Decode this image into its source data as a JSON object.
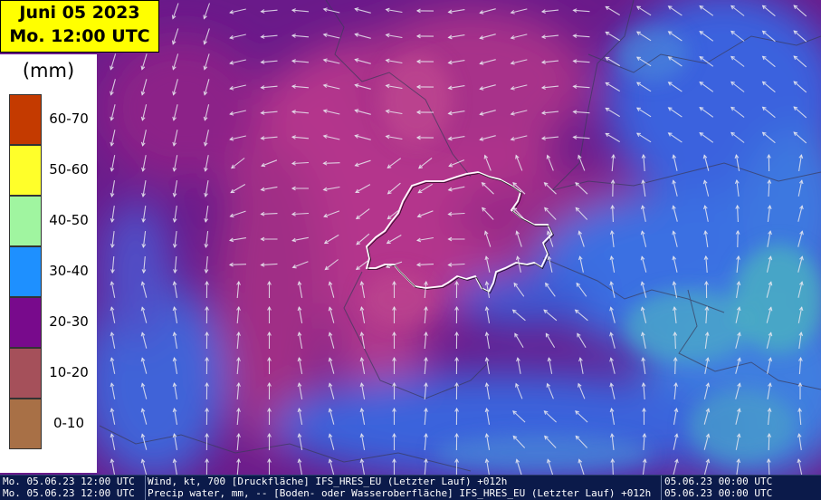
{
  "header": {
    "date": "Juni 05 2023",
    "time": "Mo. 12:00 UTC"
  },
  "legend": {
    "unit": "(mm)",
    "items": [
      {
        "label": "60-70",
        "color": "#c43a00"
      },
      {
        "label": "50-60",
        "color": "#ffff2a"
      },
      {
        "label": "40-50",
        "color": "#a0f5a0"
      },
      {
        "label": "30-40",
        "color": "#1e90ff"
      },
      {
        "label": "20-30",
        "color": "#780a8c"
      },
      {
        "label": "10-20",
        "color": "#a5505a"
      },
      {
        "label": "0-10",
        "color": "#a87046"
      }
    ]
  },
  "status": {
    "row1": {
      "valid": "Mo. 05.06.23 12:00 UTC",
      "desc": "Wind, kt, 700 [Druckfläche] IFS_HRES_EU (Letzter Lauf) +012h",
      "run": "05.06.23 00:00 UTC"
    },
    "row2": {
      "valid": "Mo. 05.06.23 12:00 UTC",
      "desc": "Precip water, mm, -- [Boden- oder Wasseroberfläche] IFS_HRES_EU (Letzter Lauf) +012h",
      "run": "05.06.23 00:00 UTC"
    }
  },
  "colors": {
    "deep_purple": "#6a1a8a",
    "magenta": "#b0308a",
    "blue": "#3a6ee0",
    "teal": "#4cb0c8",
    "border": "#ffffff",
    "arrow": "#e8e8f0"
  }
}
